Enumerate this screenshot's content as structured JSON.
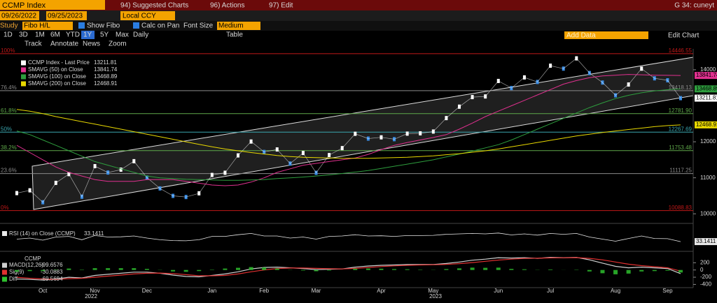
{
  "toolbar": {
    "ticker": "CCMP Index",
    "menu": [
      "94) Suggested Charts",
      "96) Actions",
      "97) Edit"
    ],
    "user": "G 34: cuneyt",
    "start_date": "09/26/2022",
    "end_date": "09/25/2023",
    "currency": "Local CCY",
    "study_label": "Study",
    "study": "Fibo H/L",
    "show_fibo": "Show Fibo",
    "calc_on_pan": "Calc on Pan",
    "font_size_label": "Font Size",
    "font_size": "Medium",
    "add_data": "Add Data",
    "edit_chart": "Edit Chart",
    "periods": [
      "1D",
      "3D",
      "1M",
      "6M",
      "YTD",
      "1Y",
      "5Y",
      "Max"
    ],
    "frequency": "Daily",
    "table": "Table",
    "tools": [
      "Track",
      "Annotate",
      "News",
      "Zoom"
    ]
  },
  "chart_data": [
    {
      "type": "line",
      "categories": [
        null,
        null,
        "Oct",
        null,
        null,
        null,
        "Nov",
        null,
        null,
        null,
        "Dec",
        null,
        null,
        null,
        null,
        "Jan",
        null,
        null,
        null,
        "Feb",
        null,
        null,
        null,
        "Mar",
        null,
        null,
        null,
        null,
        "Apr",
        null,
        null,
        null,
        "May",
        null,
        null,
        null,
        null,
        "Jun",
        null,
        null,
        null,
        "Jul",
        null,
        null,
        null,
        null,
        "Aug",
        null,
        null,
        null,
        "Sep",
        null
      ],
      "years": [
        "2022",
        "2023"
      ],
      "series": [
        {
          "name": "CCMP Index - Last Price",
          "color": "#ffffff",
          "values": [
            10575,
            10652,
            10321,
            10859,
            11102,
            10475,
            11323,
            11146,
            11226,
            11461,
            11005,
            10705,
            10498,
            10466,
            10569,
            11079,
            11140,
            11622,
            12007,
            11718,
            11787,
            11395,
            11689,
            11138,
            11631,
            11824,
            12222,
            12088,
            12123,
            12072,
            12226,
            12235,
            12284,
            12658,
            12975,
            13241,
            13259,
            13689,
            13492,
            13788,
            13661,
            14113,
            14032,
            14317,
            13909,
            13645,
            13290,
            13590,
            14031,
            13762,
            13708,
            13211.81
          ]
        },
        {
          "name": "SMAVG (50) on Close",
          "color": "#e0308f",
          "values": [
            11900,
            11700,
            11500,
            11300,
            11150,
            11050,
            10950,
            10900,
            10900,
            10900,
            10950,
            10950,
            10950,
            10900,
            10850,
            10800,
            10780,
            10800,
            10880,
            11000,
            11150,
            11250,
            11350,
            11400,
            11450,
            11500,
            11550,
            11650,
            11780,
            11900,
            11980,
            12050,
            12120,
            12200,
            12350,
            12520,
            12700,
            12850,
            13000,
            13150,
            13300,
            13450,
            13600,
            13700,
            13780,
            13830,
            13850,
            13870,
            13860,
            13850,
            13845,
            13841.74
          ]
        },
        {
          "name": "SMAVG (100) on Close",
          "color": "#2e9e3e",
          "values": [
            12300,
            12200,
            12050,
            11900,
            11750,
            11600,
            11450,
            11350,
            11250,
            11150,
            11050,
            11000,
            10980,
            10960,
            10950,
            10940,
            10930,
            10930,
            10940,
            10950,
            10980,
            11000,
            11020,
            11050,
            11080,
            11120,
            11160,
            11200,
            11260,
            11320,
            11380,
            11440,
            11500,
            11580,
            11660,
            11740,
            11830,
            11920,
            12050,
            12200,
            12350,
            12500,
            12650,
            12800,
            12950,
            13080,
            13200,
            13290,
            13360,
            13410,
            13445,
            13468.89
          ]
        },
        {
          "name": "SMAVG (200) on Close",
          "color": "#e8d800",
          "values": [
            12900,
            12850,
            12780,
            12700,
            12630,
            12560,
            12490,
            12420,
            12350,
            12280,
            12210,
            12140,
            12070,
            12000,
            11930,
            11860,
            11800,
            11750,
            11700,
            11660,
            11620,
            11590,
            11570,
            11560,
            11550,
            11540,
            11540,
            11540,
            11550,
            11560,
            11570,
            11590,
            11610,
            11640,
            11670,
            11710,
            11750,
            11800,
            11860,
            11920,
            11980,
            12040,
            12100,
            12160,
            12210,
            12260,
            12300,
            12340,
            12380,
            12420,
            12450,
            12468.91
          ]
        }
      ],
      "fibonacci": [
        {
          "percent": "100%",
          "value": 14446.55,
          "label": "14446.55",
          "color": "#c01818"
        },
        {
          "percent": "76.4%",
          "value": 13418.13,
          "label": "13418.13",
          "color": "#8a8a8a"
        },
        {
          "percent": "61.8%",
          "value": 12781.9,
          "label": "12781.90",
          "color": "#5fa84a"
        },
        {
          "percent": "50%",
          "value": 12267.69,
          "label": "12267.69",
          "color": "#3aa7b0"
        },
        {
          "percent": "38.2%",
          "value": 11753.48,
          "label": "11753.48",
          "color": "#5fa84a"
        },
        {
          "percent": "23.6%",
          "value": 11117.25,
          "label": "11117.25",
          "color": "#8a8a8a"
        },
        {
          "percent": "0%",
          "value": 10088.83,
          "label": "10088.83",
          "color": "#c01818"
        }
      ],
      "ylim": [
        9830,
        14580
      ],
      "yticks": [
        10000,
        11000,
        12000,
        14000
      ],
      "legend": "upper-left"
    },
    {
      "type": "line",
      "series": [
        {
          "name": "RSI (14) on Close (CCMP)",
          "color": "#e8e8e8",
          "values": [
            45,
            50,
            40,
            55,
            58,
            42,
            62,
            55,
            56,
            60,
            50,
            42,
            38,
            37,
            42,
            58,
            58,
            66,
            72,
            60,
            60,
            50,
            55,
            45,
            58,
            60,
            66,
            60,
            61,
            58,
            62,
            62,
            63,
            68,
            70,
            72,
            70,
            74,
            65,
            70,
            64,
            72,
            68,
            72,
            55,
            45,
            35,
            48,
            60,
            48,
            47,
            33.1411
          ]
        }
      ],
      "ylim": [
        0,
        100
      ]
    },
    {
      "type": "line",
      "title": "CCMP",
      "series": [
        {
          "name": "MACD(12,26)",
          "color": "#d0d0d0",
          "values": [
            -250,
            -260,
            -280,
            -250,
            -200,
            -220,
            -150,
            -120,
            -90,
            -60,
            -60,
            -90,
            -140,
            -180,
            -190,
            -150,
            -110,
            -50,
            30,
            70,
            80,
            60,
            40,
            10,
            20,
            30,
            80,
            110,
            130,
            140,
            150,
            150,
            150,
            180,
            220,
            270,
            300,
            340,
            330,
            340,
            320,
            350,
            340,
            350,
            280,
            190,
            100,
            60,
            80,
            60,
            40,
            -99.6576
          ]
        },
        {
          "name": "Sig(9)",
          "color": "#e03030",
          "values": [
            -200,
            -230,
            -250,
            -260,
            -240,
            -230,
            -200,
            -170,
            -140,
            -110,
            -90,
            -85,
            -100,
            -130,
            -160,
            -160,
            -150,
            -110,
            -50,
            0,
            40,
            55,
            55,
            45,
            35,
            30,
            45,
            70,
            95,
            115,
            130,
            140,
            145,
            155,
            175,
            205,
            240,
            275,
            300,
            320,
            325,
            335,
            338,
            342,
            320,
            280,
            220,
            160,
            120,
            90,
            60,
            -30.0883
          ]
        },
        {
          "name": "Diff",
          "color": "#2ec02e",
          "type": "bar",
          "values": [
            -50,
            -30,
            -30,
            10,
            40,
            10,
            50,
            50,
            50,
            50,
            30,
            -5,
            -40,
            -50,
            -30,
            10,
            40,
            60,
            80,
            70,
            40,
            5,
            -15,
            -35,
            -15,
            0,
            35,
            40,
            35,
            25,
            20,
            10,
            5,
            25,
            45,
            65,
            60,
            65,
            30,
            20,
            -5,
            15,
            2,
            8,
            -40,
            -90,
            -120,
            -100,
            -40,
            -30,
            -20,
            -69.5694
          ]
        }
      ],
      "ylim": [
        -450,
        400
      ],
      "yticks": [
        200,
        0,
        -200,
        -400
      ]
    }
  ]
}
